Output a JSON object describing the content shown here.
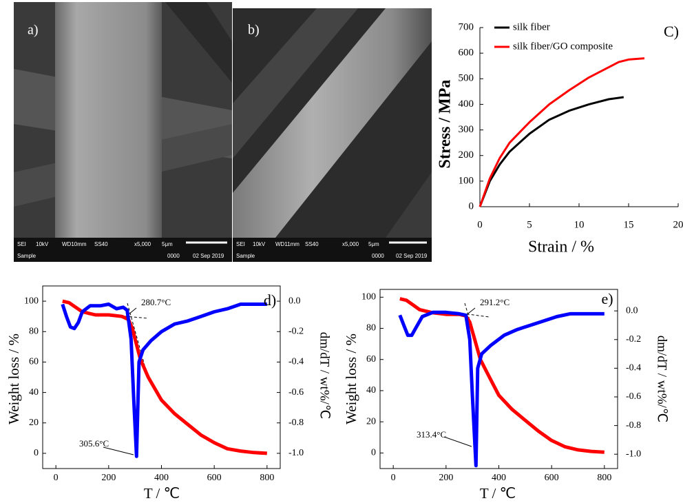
{
  "images": [
    {
      "label": "a)",
      "info": [
        "SEI",
        "10kV",
        "WD10mm",
        "SS40",
        "x5,000",
        "5μm",
        "Sample",
        "0000",
        "02 Sep 2019"
      ]
    },
    {
      "label": "b)",
      "info": [
        "SEI",
        "10kV",
        "WD11mm",
        "SS40",
        "x5,000",
        "5μm",
        "Sample",
        "0000",
        "02 Sep 2019"
      ]
    }
  ],
  "chart_data": [
    {
      "type": "line",
      "panel_label": "C)",
      "x_label": "Strain / %",
      "y_label": "Stress / MPa",
      "xlim": [
        0,
        20
      ],
      "xticks": [
        0,
        5,
        10,
        15,
        20
      ],
      "ylim": [
        0,
        700
      ],
      "yticks": [
        0,
        100,
        200,
        300,
        400,
        500,
        600,
        700
      ],
      "legend": "upper left",
      "series": [
        {
          "name": "silk fiber",
          "color": "#000000",
          "x": [
            0,
            1,
            2,
            3,
            5,
            7,
            9,
            11,
            13,
            14.5
          ],
          "values": [
            0,
            100,
            165,
            215,
            285,
            340,
            375,
            400,
            420,
            428
          ]
        },
        {
          "name": "silk fiber/GO composite",
          "color": "#ff0000",
          "x": [
            0,
            1,
            2,
            3,
            5,
            7,
            9,
            11,
            13,
            14,
            15,
            16.6
          ],
          "values": [
            0,
            110,
            190,
            250,
            330,
            400,
            455,
            505,
            545,
            565,
            575,
            580
          ]
        }
      ]
    },
    {
      "type": "line",
      "panel_label": "d)",
      "x_label": "T / ℃",
      "y_label": "Weight loss / %",
      "y2_label": "dm/dT / wt%/℃",
      "annotations": [
        "280.7°C",
        "305.6°C"
      ],
      "xlim": [
        -50,
        850
      ],
      "xticks": [
        0,
        200,
        400,
        600,
        800
      ],
      "ylim": [
        -10,
        110
      ],
      "yticks": [
        0,
        20,
        40,
        60,
        80,
        100
      ],
      "y2lim": [
        -1.1,
        0.1
      ],
      "y2ticks": [
        {
          "value": 0,
          "label": "0.0"
        },
        -0.2,
        -0.4,
        -0.6,
        -0.8,
        {
          "value": -1,
          "label": "-1.0"
        }
      ],
      "series": [
        {
          "color": "#ff0000",
          "x": [
            25,
            50,
            75,
            100,
            150,
            200,
            250,
            275,
            290,
            300,
            320,
            350,
            400,
            450,
            500,
            550,
            600,
            650,
            700,
            750,
            800
          ],
          "values": [
            100,
            99,
            96,
            93,
            91,
            91,
            90,
            88,
            82,
            75,
            62,
            50,
            35,
            26,
            19,
            12,
            7,
            3,
            1.5,
            0.5,
            0
          ]
        },
        {
          "color": "#0000ff",
          "axis": "y2",
          "x": [
            25,
            40,
            55,
            70,
            85,
            100,
            130,
            170,
            200,
            230,
            255,
            270,
            285,
            295,
            305.6,
            315,
            330,
            360,
            400,
            450,
            500,
            550,
            600,
            650,
            700,
            750,
            800
          ],
          "values": [
            -0.02,
            -0.1,
            -0.17,
            -0.18,
            -0.14,
            -0.07,
            -0.03,
            -0.03,
            -0.02,
            -0.05,
            -0.04,
            -0.06,
            -0.25,
            -0.65,
            -1.02,
            -0.4,
            -0.32,
            -0.26,
            -0.2,
            -0.15,
            -0.13,
            -0.1,
            -0.07,
            -0.05,
            -0.02,
            -0.02,
            -0.02
          ]
        }
      ]
    },
    {
      "type": "line",
      "panel_label": "e)",
      "x_label": "T / ℃",
      "y_label": "Weight loss / %",
      "y2_label": "dm/dT / wt%/℃",
      "annotations": [
        "291.2°C",
        "313.4°C"
      ],
      "xlim": [
        -50,
        850
      ],
      "xticks": [
        0,
        200,
        400,
        600,
        800
      ],
      "ylim": [
        -10,
        105
      ],
      "yticks": [
        0,
        20,
        40,
        60,
        80,
        100
      ],
      "y2lim": [
        -1.1,
        0.15
      ],
      "y2ticks": [
        {
          "value": 0,
          "label": "0.0"
        },
        -0.2,
        -0.4,
        -0.6,
        -0.8,
        {
          "value": -1,
          "label": "-1.0"
        }
      ],
      "series": [
        {
          "color": "#ff0000",
          "x": [
            25,
            50,
            75,
            100,
            150,
            200,
            250,
            275,
            290,
            310,
            330,
            360,
            400,
            450,
            500,
            550,
            600,
            650,
            700,
            750,
            800
          ],
          "values": [
            99,
            98,
            95,
            92,
            90,
            89,
            89,
            88,
            84,
            72,
            60,
            50,
            37,
            28,
            21,
            14,
            8,
            4,
            2,
            1,
            0.5
          ]
        },
        {
          "color": "#0000ff",
          "axis": "y2",
          "x": [
            25,
            40,
            55,
            70,
            85,
            110,
            150,
            200,
            250,
            275,
            290,
            300,
            313.4,
            320,
            335,
            370,
            420,
            470,
            520,
            570,
            620,
            670,
            800
          ],
          "values": [
            -0.03,
            -0.1,
            -0.17,
            -0.17,
            -0.12,
            -0.04,
            -0.01,
            -0.01,
            -0.02,
            -0.03,
            -0.2,
            -0.6,
            -1.08,
            -0.4,
            -0.3,
            -0.24,
            -0.17,
            -0.13,
            -0.1,
            -0.07,
            -0.04,
            -0.02,
            -0.02
          ]
        }
      ]
    }
  ]
}
